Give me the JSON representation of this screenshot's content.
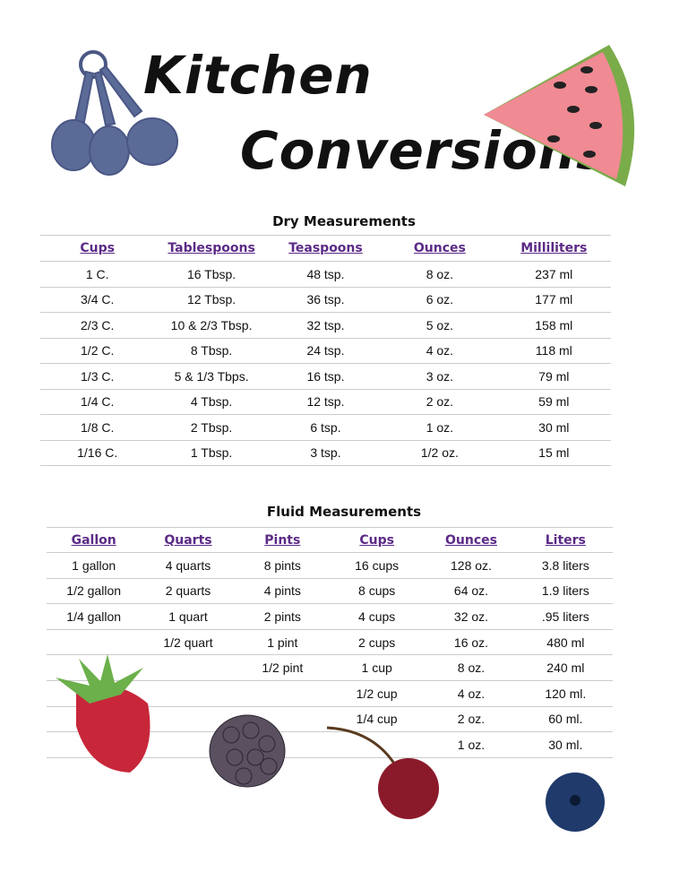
{
  "header": {
    "title_line1": "Kitchen",
    "title_line2": "Conversions"
  },
  "dry": {
    "title": "Dry Measurements",
    "headers": [
      "Cups",
      "Tablespoons",
      "Teaspoons",
      "Ounces",
      "Milliliters"
    ],
    "rows": [
      [
        "1 C.",
        "16 Tbsp.",
        "48 tsp.",
        "8 oz.",
        "237 ml"
      ],
      [
        "3/4 C.",
        "12 Tbsp.",
        "36 tsp.",
        "6 oz.",
        "177 ml"
      ],
      [
        "2/3 C.",
        "10 & 2/3 Tbsp.",
        "32 tsp.",
        "5 oz.",
        "158 ml"
      ],
      [
        "1/2 C.",
        "8 Tbsp.",
        "24 tsp.",
        "4 oz.",
        "118 ml"
      ],
      [
        "1/3 C.",
        "5 & 1/3 Tbps.",
        "16 tsp.",
        "3 oz.",
        "79 ml"
      ],
      [
        "1/4 C.",
        "4 Tbsp.",
        "12 tsp.",
        "2 oz.",
        "59 ml"
      ],
      [
        "1/8 C.",
        "2 Tbsp.",
        "6 tsp.",
        "1 oz.",
        "30 ml"
      ],
      [
        "1/16 C.",
        "1 Tbsp.",
        "3 tsp.",
        "1/2 oz.",
        "15 ml"
      ]
    ]
  },
  "fluid": {
    "title": "Fluid Measurements",
    "headers": [
      "Gallon",
      "Quarts",
      "Pints",
      "Cups",
      "Ounces",
      "Liters"
    ],
    "rows": [
      [
        "1 gallon",
        "4 quarts",
        "8 pints",
        "16 cups",
        "128 oz.",
        "3.8 liters"
      ],
      [
        "1/2 gallon",
        "2 quarts",
        "4 pints",
        "8 cups",
        "64 oz.",
        "1.9 liters"
      ],
      [
        "1/4 gallon",
        "1 quart",
        "2 pints",
        "4 cups",
        "32 oz.",
        ".95 liters"
      ],
      [
        null,
        "1/2 quart",
        "1 pint",
        "2 cups",
        "16 oz.",
        "480 ml"
      ],
      [
        null,
        null,
        "1/2 pint",
        "1 cup",
        "8 oz.",
        "240 ml"
      ],
      [
        null,
        null,
        null,
        "1/2 cup",
        "4 oz.",
        "120 ml."
      ],
      [
        null,
        null,
        null,
        "1/4 cup",
        "2 oz.",
        "60 ml."
      ],
      [
        null,
        null,
        null,
        null,
        "1 oz.",
        "30 ml."
      ]
    ]
  }
}
